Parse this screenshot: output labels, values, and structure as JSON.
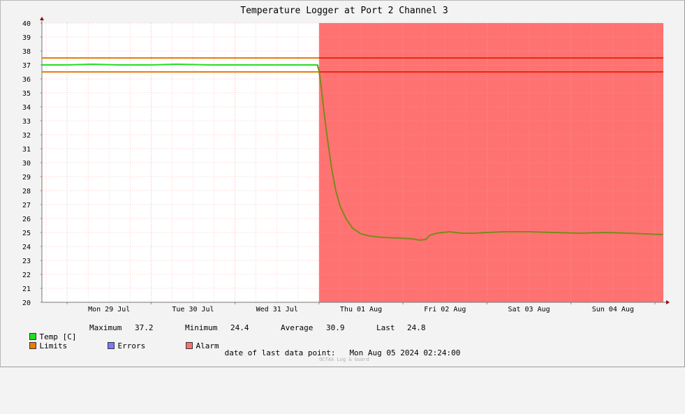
{
  "chart_data": {
    "type": "line",
    "title": "Temperature Logger at Port 2 Channel 3",
    "ylim": [
      20,
      40
    ],
    "y_ticks": [
      20,
      21,
      22,
      23,
      24,
      25,
      26,
      27,
      28,
      29,
      30,
      31,
      32,
      33,
      34,
      35,
      36,
      37,
      38,
      39,
      40
    ],
    "x_ticks": [
      "Mon 29 Jul",
      "Tue 30 Jul",
      "Wed 31 Jul",
      "Thu 01 Aug",
      "Fri 02 Aug",
      "Sat 03 Aug",
      "Sun 04 Aug"
    ],
    "x_range_days": [
      28.7,
      36.1
    ],
    "limits": [
      36.5,
      37.5
    ],
    "alarm_start_day": 32.0,
    "series": [
      {
        "name": "Temp [C]",
        "points": [
          [
            28.7,
            37.0
          ],
          [
            29.0,
            37.0
          ],
          [
            29.3,
            37.05
          ],
          [
            29.6,
            37.0
          ],
          [
            30.0,
            37.0
          ],
          [
            30.3,
            37.05
          ],
          [
            30.7,
            37.0
          ],
          [
            31.0,
            37.0
          ],
          [
            31.3,
            37.0
          ],
          [
            31.6,
            37.0
          ],
          [
            31.98,
            37.0
          ],
          [
            32.0,
            36.6
          ],
          [
            32.03,
            35.2
          ],
          [
            32.06,
            33.6
          ],
          [
            32.1,
            31.7
          ],
          [
            32.15,
            29.6
          ],
          [
            32.2,
            28.0
          ],
          [
            32.25,
            26.9
          ],
          [
            32.32,
            26.0
          ],
          [
            32.4,
            25.3
          ],
          [
            32.5,
            24.9
          ],
          [
            32.6,
            24.75
          ],
          [
            32.75,
            24.65
          ],
          [
            32.95,
            24.6
          ],
          [
            33.1,
            24.55
          ],
          [
            33.2,
            24.45
          ],
          [
            33.27,
            24.5
          ],
          [
            33.32,
            24.8
          ],
          [
            33.4,
            24.95
          ],
          [
            33.55,
            25.05
          ],
          [
            33.7,
            24.95
          ],
          [
            33.85,
            24.95
          ],
          [
            34.0,
            25.0
          ],
          [
            34.2,
            25.05
          ],
          [
            34.5,
            25.05
          ],
          [
            34.8,
            25.0
          ],
          [
            35.1,
            24.95
          ],
          [
            35.4,
            25.0
          ],
          [
            35.7,
            24.95
          ],
          [
            35.9,
            24.9
          ],
          [
            36.1,
            24.85
          ]
        ]
      }
    ],
    "colors": {
      "temp": "#22dd22",
      "temp_in_alarm": "#7a8a18",
      "limits": "#ee7a0a",
      "limits_in_alarm": "#e62810",
      "alarm": "#ff7272",
      "errors": "#7a7aff",
      "grid": "#ff9c9c",
      "plot_bg": "#ffffff",
      "background": "#f3f3f3"
    }
  },
  "legend": {
    "temp_label": "Temp [C]",
    "max_label": "Maximum",
    "max_value": "37.2",
    "min_label": "Minimum",
    "min_value": "24.4",
    "avg_label": "Average",
    "avg_value": "30.9",
    "last_label": "Last",
    "last_value": "24.8",
    "limits_label": "Limits",
    "errors_label": "Errors",
    "alarm_label": "Alarm"
  },
  "footer": {
    "last_point_label": "date of last data point:",
    "last_point_value": "Mon Aug 05 2024 02:24:00",
    "watermark": "OCTAA Log & Guard"
  }
}
